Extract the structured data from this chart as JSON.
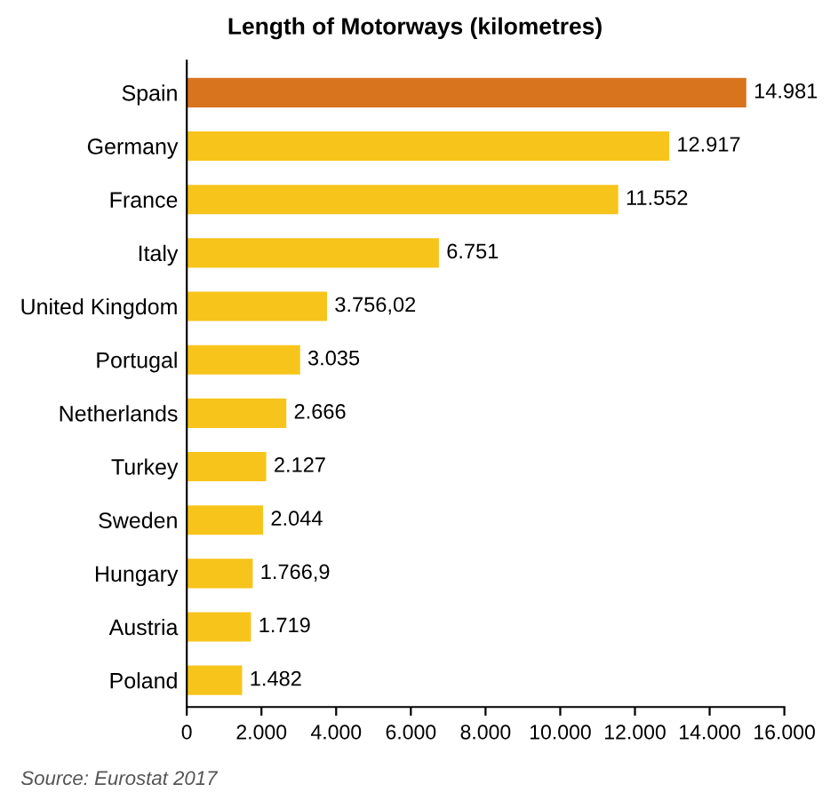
{
  "chart_data": {
    "type": "bar",
    "orientation": "horizontal",
    "title": "Length of Motorways (kilometres)",
    "categories": [
      "Spain",
      "Germany",
      "France",
      "Italy",
      "United Kingdom",
      "Portugal",
      "Netherlands",
      "Turkey",
      "Sweden",
      "Hungary",
      "Austria",
      "Poland"
    ],
    "values": [
      14981,
      12917,
      11552,
      6751,
      3756.02,
      3035,
      2666,
      2127,
      2044,
      1766.9,
      1719,
      1482
    ],
    "colors": [
      "#d8731e",
      "#f7c41b",
      "#f7c41b",
      "#f7c41b",
      "#f7c41b",
      "#f7c41b",
      "#f7c41b",
      "#f7c41b",
      "#f7c41b",
      "#f7c41b",
      "#f7c41b",
      "#f7c41b"
    ],
    "value_labels": [
      "14.981",
      "12.917",
      "11.552",
      "6.751",
      "3.756,02",
      "3.035",
      "2.666",
      "2.127",
      "2.044",
      "1.766,9",
      "1.719",
      "1.482"
    ],
    "xlim": [
      0,
      16000
    ],
    "xticks": [
      0,
      {
        "value": 2000,
        "label": "2.000"
      },
      {
        "value": 4000,
        "label": "4.000"
      },
      {
        "value": 6000,
        "label": "6.000"
      },
      {
        "value": 8000,
        "label": "8.000"
      },
      {
        "value": 10000,
        "label": "10.000"
      },
      {
        "value": 12000,
        "label": "12.000"
      },
      {
        "value": 14000,
        "label": "14.000"
      },
      {
        "value": 16000,
        "label": "16.000"
      }
    ],
    "grid": false,
    "annotations": [
      "Source: Eurostat 2017"
    ]
  }
}
